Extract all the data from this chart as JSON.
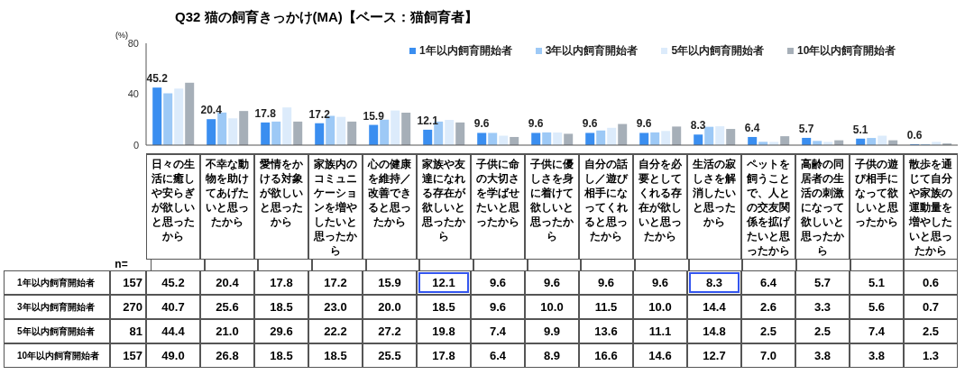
{
  "chart_data": {
    "type": "bar",
    "title": "Q32 猫の飼育きっかけ(MA)【ベース：猫飼育者】",
    "ylabel": "(%)",
    "categories": [
      "日々の生活に癒しや安らぎが欲しいと思ったから",
      "不幸な動物を助けてあげたいと思ったから",
      "愛情をかける対象が欲しいと思ったから",
      "家族内のコミュニケーションを増やしたいと思ったから",
      "心の健康を維持／改善できると思ったから",
      "家族や友達になれる存在が欲しいと思ったから",
      "子供に命の大切さを学ばせたいと思ったから",
      "子供に優しさを身に着けて欲しいと思ったから",
      "自分の話し／遊び相手になってくれると思ったから",
      "自分を必要としてくれる存在が欲しいと思ったから",
      "生活の寂しさを解消したいと思ったから",
      "ペットを飼うことで、人との交友関係を拡げたいと思ったから",
      "高齢の同居者の生活の刺激になって欲しいと思ったから",
      "子供の遊び相手になって欲しいと思ったから",
      "散歩を通じて自分や家族の運動量を増やしたいと思ったから"
    ],
    "series": [
      {
        "name": "1年以内飼育開始者",
        "color": "#3a8ef0",
        "values": [
          45.2,
          20.4,
          17.8,
          17.2,
          15.9,
          12.1,
          9.6,
          9.6,
          9.6,
          9.6,
          8.3,
          6.4,
          5.7,
          5.1,
          0.6
        ],
        "value_labels": [
          "45.2",
          "20.4",
          "17.8",
          "17.2",
          "15.9",
          "12.1",
          "9.6",
          "9.6",
          "9.6",
          "9.6",
          "8.3",
          "6.4",
          "5.7",
          "5.1",
          "0.6"
        ]
      },
      {
        "name": "3年以内飼育開始者",
        "color": "#9dc9f6",
        "values": [
          40.7,
          25.6,
          18.5,
          23.0,
          20.0,
          18.5,
          9.6,
          10.0,
          11.5,
          10.0,
          14.4,
          2.6,
          3.3,
          5.6,
          0.7
        ],
        "value_labels": [
          "40.7",
          "25.6",
          "18.5",
          "23.0",
          "20.0",
          "18.5",
          "9.6",
          "10.0",
          "11.5",
          "10.0",
          "14.4",
          "2.6",
          "3.3",
          "5.6",
          "0.7"
        ]
      },
      {
        "name": "5年以内飼育開始者",
        "color": "#dcebfb",
        "values": [
          44.4,
          21.0,
          29.6,
          22.2,
          27.2,
          19.8,
          7.4,
          9.9,
          13.6,
          11.1,
          14.8,
          2.5,
          2.5,
          7.4,
          2.5
        ],
        "value_labels": [
          "44.4",
          "21.0",
          "29.6",
          "22.2",
          "27.2",
          "19.8",
          "7.4",
          "9.9",
          "13.6",
          "11.1",
          "14.8",
          "2.5",
          "2.5",
          "7.4",
          "2.5"
        ]
      },
      {
        "name": "10年以内飼育開始者",
        "color": "#a6afb8",
        "values": [
          49.0,
          26.8,
          18.5,
          18.5,
          25.5,
          17.8,
          6.4,
          8.9,
          16.6,
          14.6,
          12.7,
          7.0,
          3.8,
          3.8,
          1.3
        ],
        "value_labels": [
          "49.0",
          "26.8",
          "18.5",
          "18.5",
          "25.5",
          "17.8",
          "6.4",
          "8.9",
          "16.6",
          "14.6",
          "12.7",
          "7.0",
          "3.8",
          "3.8",
          "1.3"
        ]
      }
    ],
    "ylim": [
      0,
      80
    ],
    "yticks": [
      0,
      40,
      80
    ],
    "legend": "top",
    "annotations": [
      "n=",
      "157",
      "270",
      "81",
      "157"
    ]
  }
}
